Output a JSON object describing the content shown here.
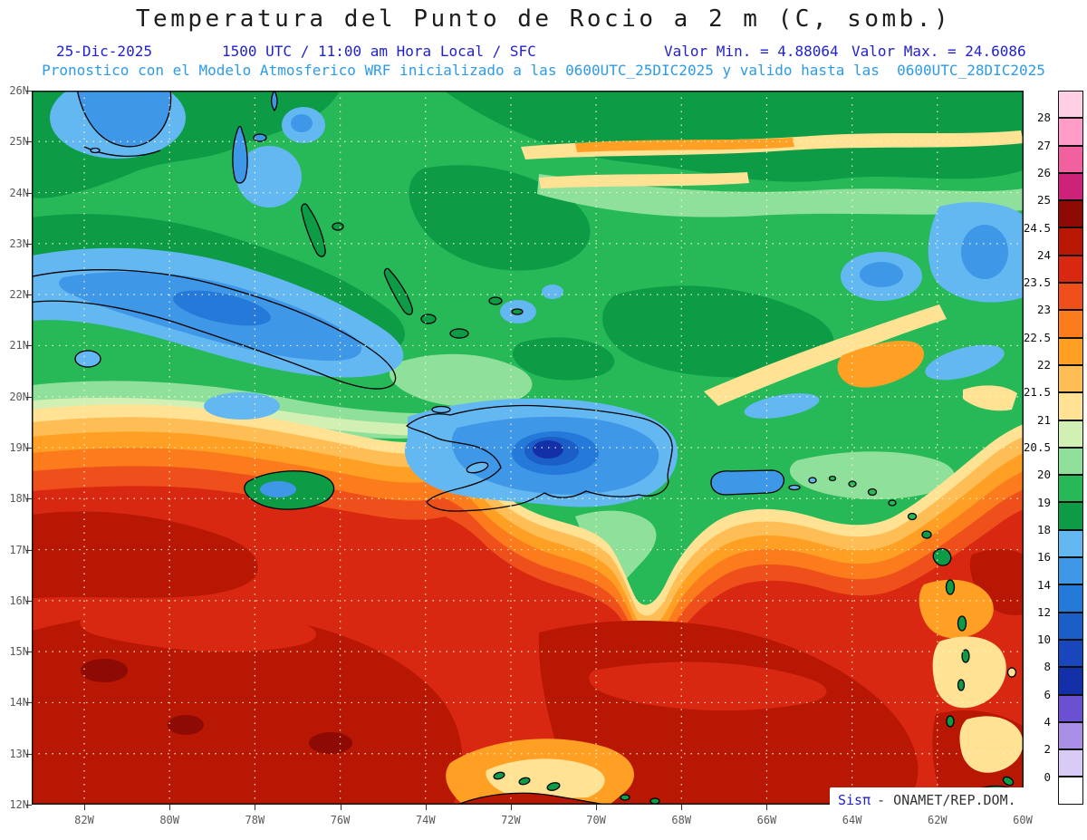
{
  "header": {
    "title": "Temperatura del Punto de Rocio a 2 m (C, somb.)",
    "date": "25-Dic-2025",
    "time": "1500 UTC / 11:00 am Hora Local / SFC",
    "min_label": "Valor Min. = 4.88064",
    "max_label": "Valor Max. = 24.6086",
    "forecast": "Pronostico con el Modelo Atmosferico WRF inicializado a las 0600UTC_25DIC2025 y valido hasta las  0600UTC_28DIC2025"
  },
  "map": {
    "lat_labels": [
      "26N",
      "25N",
      "24N",
      "23N",
      "22N",
      "21N",
      "20N",
      "19N",
      "18N",
      "17N",
      "16N",
      "15N",
      "14N",
      "13N",
      "12N"
    ],
    "lon_labels": [
      "82W",
      "80W",
      "78W",
      "76W",
      "74W",
      "72W",
      "70W",
      "68W",
      "66W",
      "64W",
      "62W",
      "60W"
    ]
  },
  "legend": {
    "labels": [
      "28",
      "27",
      "26",
      "25",
      "24.5",
      "24",
      "23.5",
      "23",
      "22.5",
      "22",
      "21.5",
      "21",
      "20.5",
      "20",
      "19",
      "18",
      "16",
      "14",
      "12",
      "10",
      "8",
      "6",
      "4",
      "2",
      "0"
    ],
    "colors": [
      "#ffd0e4",
      "#ff9dc8",
      "#f2609f",
      "#cc2277",
      "#8e0a04",
      "#b71703",
      "#d92812",
      "#ef4f1b",
      "#fb7b1d",
      "#ffa024",
      "#ffbe55",
      "#ffe294",
      "#d2f0b4",
      "#8fe09a",
      "#27b858",
      "#0d9c45",
      "#63b8f2",
      "#3f97e8",
      "#2579d8",
      "#1c5ec8",
      "#1a46bc",
      "#1430a8",
      "#6a51d2",
      "#a98fe6",
      "#d8ccf6",
      "#ffffff"
    ]
  },
  "watermark": {
    "brand": "Sisπ",
    "rest": "- ONAMET/REP.DOM."
  },
  "palette": {
    "green_base": "#27b858",
    "green_dark": "#0d9c45",
    "green_light": "#8fe09a",
    "green_pale": "#d2f0b4",
    "tan": "#ffe294",
    "orange_light": "#ffbe55",
    "orange": "#ffa024",
    "orange_dark": "#fb7b1d",
    "orange_red": "#ef4f1b",
    "red": "#d92812",
    "red_dark": "#b71703",
    "maroon": "#8e0a04",
    "blue_light": "#63b8f2",
    "blue": "#3f97e8",
    "blue_med": "#2579d8",
    "blue_deep": "#1c5ec8",
    "navy": "#1430a8",
    "header_blue": "#2222cc",
    "header_cyan": "#2d9be8"
  },
  "chart_data": {
    "type": "heatmap",
    "title": "Temperatura del Punto de Rocio a 2 m (C, somb.)",
    "units": "C",
    "value_min": 4.88064,
    "value_max": 24.6086,
    "lat_range": [
      "12N",
      "26N"
    ],
    "lon_range": [
      "82W",
      "60W"
    ],
    "scale_levels": [
      0,
      2,
      4,
      6,
      8,
      10,
      12,
      14,
      16,
      18,
      19,
      20,
      20.5,
      21,
      21.5,
      22,
      22.5,
      23,
      23.5,
      24,
      24.5,
      25,
      26,
      27,
      28
    ]
  }
}
